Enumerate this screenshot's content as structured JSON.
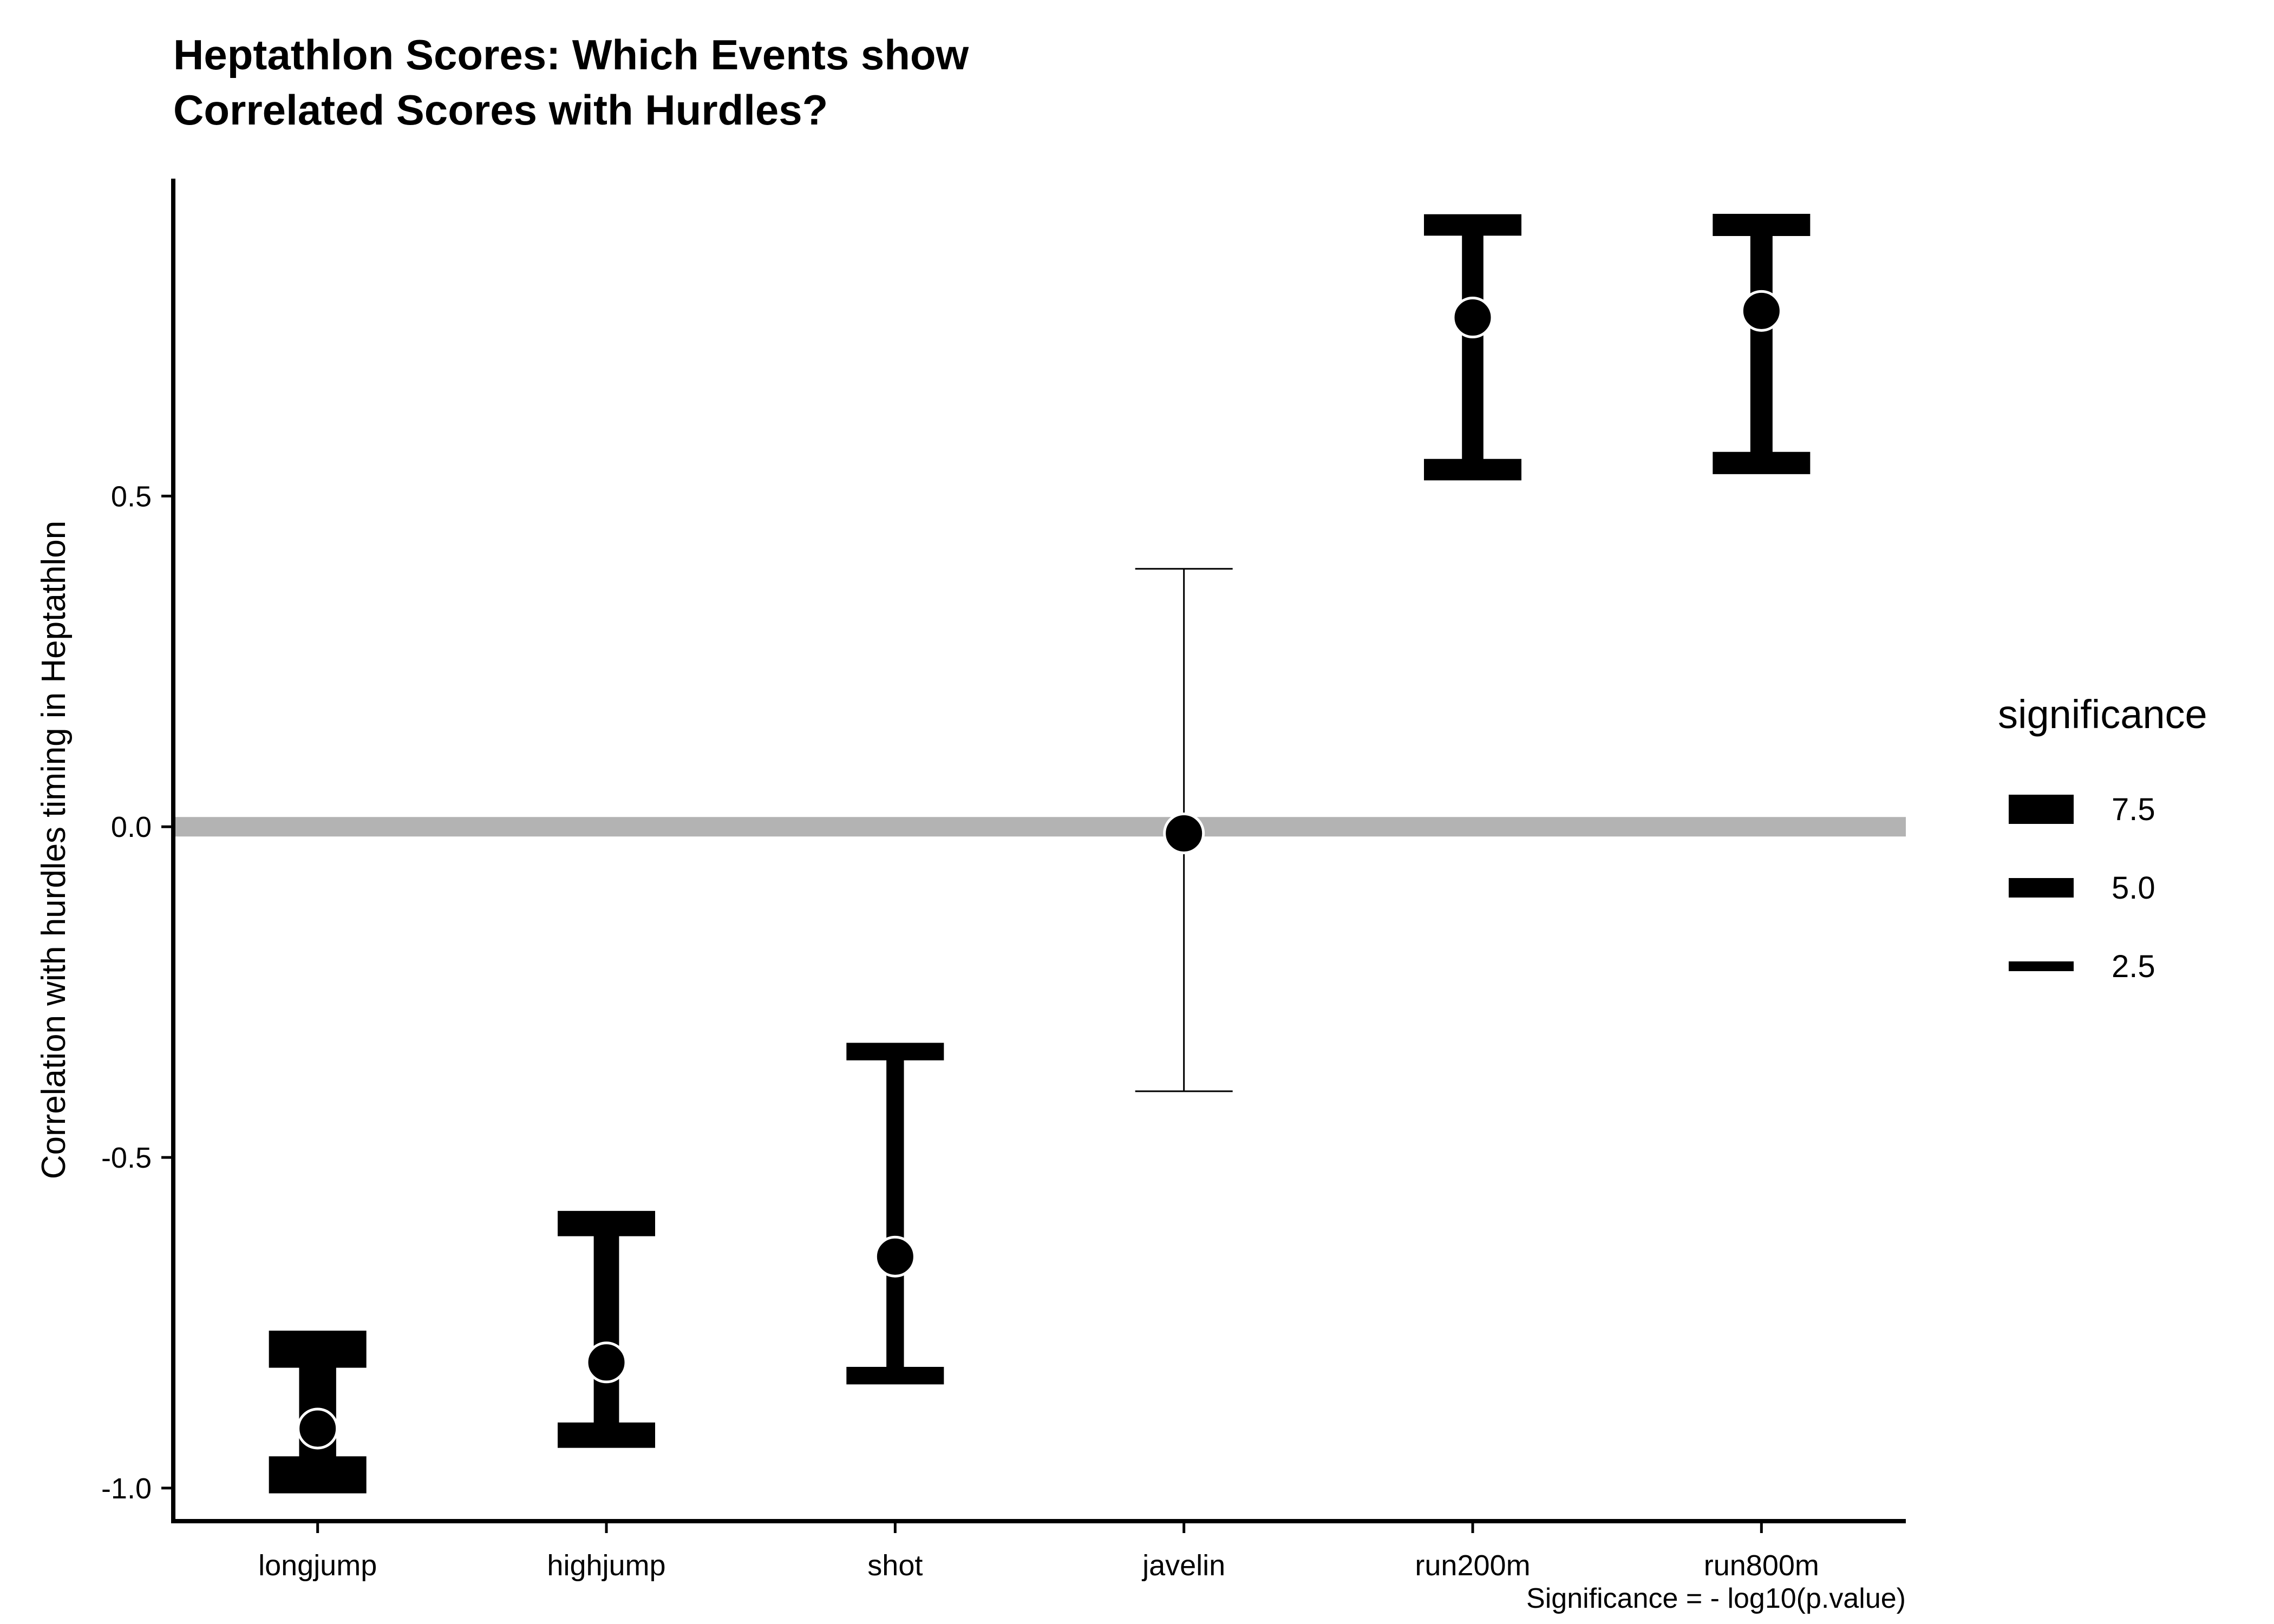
{
  "chart_data": {
    "type": "errorbar",
    "title": "Heptathlon Scores: Which Events show Correlated Scores with Hurdles?",
    "title_lines": [
      "Heptathlon Scores: Which Events show",
      "Correlated Scores with Hurdles?"
    ],
    "xlabel": "",
    "ylabel": "Correlation with hurdles timing in Heptathlon",
    "caption": "Significance = - log10(p.value)",
    "categories": [
      "longjump",
      "highjump",
      "shot",
      "javelin",
      "run200m",
      "run800m"
    ],
    "estimate": [
      -0.91,
      -0.81,
      -0.65,
      -0.01,
      0.77,
      0.78
    ],
    "conf_low": [
      -0.98,
      -0.92,
      -0.83,
      -0.4,
      0.54,
      0.55
    ],
    "conf_high": [
      -0.79,
      -0.6,
      -0.34,
      0.39,
      0.91,
      0.91
    ],
    "significance": [
      9.5,
      6.5,
      4.5,
      0.05,
      5.5,
      5.7
    ],
    "ylim": [
      -1.05,
      0.98
    ],
    "yticks": [
      -1.0,
      -0.5,
      0.0,
      0.5
    ],
    "ytick_labels": [
      "-1.0",
      "-0.5",
      "0.0",
      "0.5"
    ],
    "reference_line": 0.0,
    "reference_color": "#b3b3b3",
    "mark_color": "#000000",
    "point_outline_color": "#ffffff",
    "legend": {
      "title": "significance",
      "position": "right",
      "entries": [
        {
          "label": "7.5",
          "value": 7.5
        },
        {
          "label": "5.0",
          "value": 5.0
        },
        {
          "label": "2.5",
          "value": 2.5
        }
      ]
    },
    "grid": false
  }
}
